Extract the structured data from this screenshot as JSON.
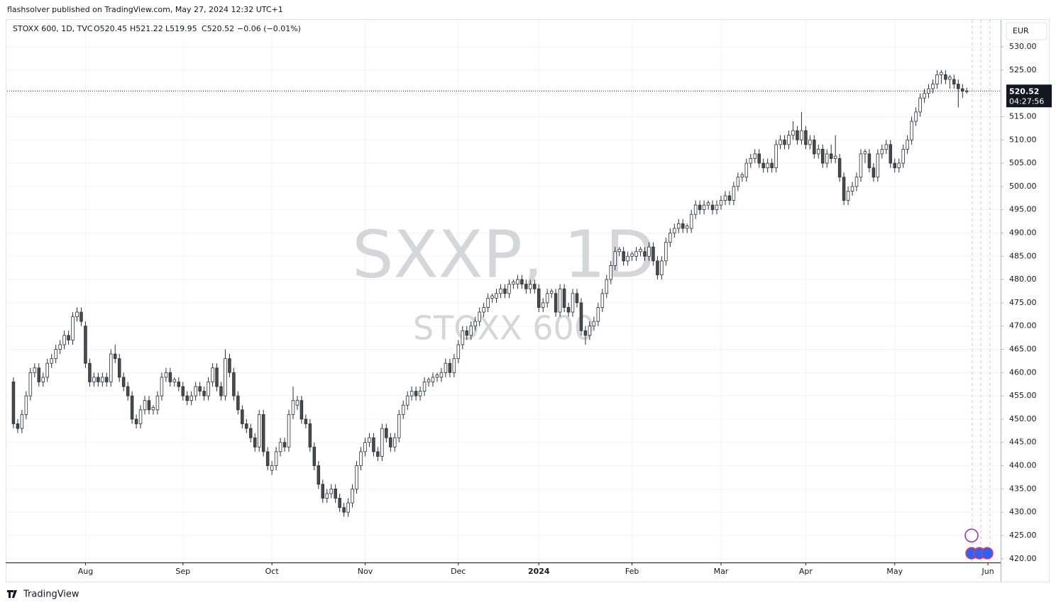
{
  "header": "flashsolver published on TradingView.com, May 27, 2024 12:32 UTC+1",
  "footer": "TradingView",
  "chart_data": {
    "type": "candlestick",
    "legend": {
      "symbol": "STOXX 600, 1D, TVC",
      "open": "O520.45",
      "high": "H521.22",
      "low": "L519.95",
      "close": "C520.52",
      "change": "−0.06 (−0.01%)"
    },
    "watermark": {
      "ticker": "SXXP, 1D",
      "name": "STOXX 600"
    },
    "currency": "EUR",
    "last_price_label": "520.52",
    "countdown": "04:27:56",
    "up_color": "#ffffff",
    "down_color": "#4a4a4a",
    "wick_color": "#2a2e39",
    "grid": true,
    "xlim": [
      -1.5,
      233
    ],
    "xticks": [
      {
        "value": 17,
        "label": "Aug"
      },
      {
        "value": 40,
        "label": "Sep"
      },
      {
        "value": 61,
        "label": "Oct"
      },
      {
        "value": 83,
        "label": "Nov"
      },
      {
        "value": 105,
        "label": "Dec"
      },
      {
        "value": 124,
        "label": "2024"
      },
      {
        "value": 146,
        "label": "Feb"
      },
      {
        "value": 167,
        "label": "Mar"
      },
      {
        "value": 187,
        "label": "Apr"
      },
      {
        "value": 208,
        "label": "May"
      },
      {
        "value": 230,
        "label": "Jun"
      }
    ],
    "ylim": [
      419.2,
      535.8
    ],
    "yticks": [
      {
        "value": 420,
        "label": "420.00"
      },
      {
        "value": 425,
        "label": "425.00"
      },
      {
        "value": 430,
        "label": "430.00"
      },
      {
        "value": 435,
        "label": "435.00"
      },
      {
        "value": 440,
        "label": "440.00"
      },
      {
        "value": 445,
        "label": "445.00"
      },
      {
        "value": 450,
        "label": "450.00"
      },
      {
        "value": 455,
        "label": "455.00"
      },
      {
        "value": 460,
        "label": "460.00"
      },
      {
        "value": 465,
        "label": "465.00"
      },
      {
        "value": 470,
        "label": "470.00"
      },
      {
        "value": 475,
        "label": "475.00"
      },
      {
        "value": 480,
        "label": "480.00"
      },
      {
        "value": 485,
        "label": "485.00"
      },
      {
        "value": 490,
        "label": "490.00"
      },
      {
        "value": 495,
        "label": "495.00"
      },
      {
        "value": 500,
        "label": "500.00"
      },
      {
        "value": 505,
        "label": "505.00"
      },
      {
        "value": 510,
        "label": "510.00"
      },
      {
        "value": 515,
        "label": "515.00"
      },
      {
        "value": 525,
        "label": "525.00"
      },
      {
        "value": 530,
        "label": "530.00"
      }
    ],
    "ohlc": [
      [
        458,
        459,
        448,
        449
      ],
      [
        449,
        450,
        447,
        448
      ],
      [
        448,
        452,
        447,
        451
      ],
      [
        451,
        456,
        450,
        455
      ],
      [
        455,
        461,
        454,
        460
      ],
      [
        460,
        462,
        459,
        461
      ],
      [
        461,
        462,
        457,
        458
      ],
      [
        458,
        460,
        457,
        459
      ],
      [
        459,
        463,
        458,
        462
      ],
      [
        462,
        464,
        461,
        463
      ],
      [
        463,
        466,
        462,
        465
      ],
      [
        465,
        467,
        464,
        466
      ],
      [
        466,
        469,
        465,
        468
      ],
      [
        468,
        469,
        466,
        467
      ],
      [
        467,
        473,
        466,
        472
      ],
      [
        472,
        474,
        471,
        473
      ],
      [
        473,
        474,
        470,
        471
      ],
      [
        470,
        471,
        461,
        462
      ],
      [
        462,
        463,
        457,
        458
      ],
      [
        458,
        460,
        457,
        459
      ],
      [
        459,
        460,
        457,
        458
      ],
      [
        458,
        460,
        457,
        459
      ],
      [
        459,
        460,
        457,
        458
      ],
      [
        458,
        465,
        457,
        464
      ],
      [
        464,
        466,
        462,
        463
      ],
      [
        463,
        464,
        458,
        459
      ],
      [
        459,
        460,
        456,
        457
      ],
      [
        457,
        458,
        454,
        455
      ],
      [
        455,
        456,
        449,
        450
      ],
      [
        450,
        451,
        448,
        449
      ],
      [
        449,
        453,
        448,
        452
      ],
      [
        452,
        455,
        451,
        454
      ],
      [
        454,
        455,
        451,
        452
      ],
      [
        452,
        453,
        451,
        452.5
      ],
      [
        452,
        456,
        451,
        455
      ],
      [
        455,
        460,
        454,
        459
      ],
      [
        459,
        461,
        458,
        460
      ],
      [
        460,
        461,
        457,
        458
      ],
      [
        458,
        459,
        457,
        458.5
      ],
      [
        458,
        459,
        456,
        457
      ],
      [
        457,
        458,
        454,
        455
      ],
      [
        455,
        456,
        453,
        454
      ],
      [
        454,
        456,
        453,
        455
      ],
      [
        455,
        458,
        454,
        457
      ],
      [
        457,
        458,
        455,
        456
      ],
      [
        456,
        457,
        454,
        455
      ],
      [
        455,
        459,
        454,
        458
      ],
      [
        458,
        462,
        457,
        461
      ],
      [
        461,
        462,
        456,
        457
      ],
      [
        457,
        458,
        454,
        455
      ],
      [
        455,
        465,
        454,
        463
      ],
      [
        463,
        464,
        459,
        460
      ],
      [
        460,
        461,
        454,
        455
      ],
      [
        455,
        456,
        451,
        452
      ],
      [
        452,
        453,
        448,
        449
      ],
      [
        449,
        450,
        447,
        448
      ],
      [
        448,
        449,
        445,
        446
      ],
      [
        446,
        447,
        443,
        444
      ],
      [
        444,
        452,
        443,
        451
      ],
      [
        451,
        452,
        442,
        443
      ],
      [
        443,
        444,
        439,
        440
      ],
      [
        439,
        441,
        438,
        440
      ],
      [
        440,
        444,
        439,
        443
      ],
      [
        443,
        446,
        442,
        445
      ],
      [
        445,
        446,
        443,
        444
      ],
      [
        444,
        452,
        443,
        451
      ],
      [
        451,
        457,
        450,
        454
      ],
      [
        453,
        455,
        452,
        454
      ],
      [
        454,
        455,
        449,
        450
      ],
      [
        450,
        451,
        448,
        449
      ],
      [
        449,
        450,
        443,
        444
      ],
      [
        444,
        445,
        439,
        440
      ],
      [
        440,
        441,
        435,
        436
      ],
      [
        436,
        437,
        432,
        433
      ],
      [
        433,
        435,
        432,
        434
      ],
      [
        434,
        436,
        433,
        435
      ],
      [
        435,
        436,
        432,
        433
      ],
      [
        433,
        434,
        430,
        431
      ],
      [
        431,
        432,
        429,
        430
      ],
      [
        430,
        433,
        429,
        432
      ],
      [
        432,
        436,
        431,
        435
      ],
      [
        435,
        441,
        434,
        440
      ],
      [
        440,
        444,
        439,
        443
      ],
      [
        443,
        446,
        442,
        445
      ],
      [
        445,
        447,
        444,
        446
      ],
      [
        446,
        447,
        442,
        443
      ],
      [
        443,
        444,
        441,
        442
      ],
      [
        442,
        449,
        441,
        448
      ],
      [
        448,
        449,
        445,
        446
      ],
      [
        446,
        447,
        443,
        444
      ],
      [
        444,
        447,
        443,
        446
      ],
      [
        446,
        452,
        445,
        451
      ],
      [
        451,
        454,
        450,
        453
      ],
      [
        453,
        456,
        452,
        455
      ],
      [
        455,
        457,
        454,
        456
      ],
      [
        456,
        457,
        454,
        455
      ],
      [
        455,
        457,
        454,
        456
      ],
      [
        456,
        459,
        455,
        458
      ],
      [
        458,
        459,
        457,
        458.5
      ],
      [
        458,
        460,
        457,
        459
      ],
      [
        459,
        460,
        458,
        459.5
      ],
      [
        459,
        461,
        458,
        460
      ],
      [
        460,
        463,
        459,
        462
      ],
      [
        462,
        463,
        459,
        460
      ],
      [
        460,
        464,
        459,
        463
      ],
      [
        463,
        467,
        462,
        466
      ],
      [
        466,
        470,
        465,
        469
      ],
      [
        469,
        470,
        467,
        468
      ],
      [
        468,
        471,
        467,
        470
      ],
      [
        470,
        472,
        469,
        471
      ],
      [
        471,
        474,
        470,
        473
      ],
      [
        473,
        475,
        472,
        474
      ],
      [
        474,
        477,
        473,
        476
      ],
      [
        476,
        477,
        475,
        476.5
      ],
      [
        476,
        478,
        475,
        477
      ],
      [
        477,
        479,
        476,
        478
      ],
      [
        478,
        479,
        476,
        477
      ],
      [
        477,
        480,
        476,
        479
      ],
      [
        479,
        480,
        478,
        479.5
      ],
      [
        479,
        481,
        478,
        480
      ],
      [
        480,
        481,
        478,
        479
      ],
      [
        479,
        480,
        477,
        478
      ],
      [
        478,
        480,
        477,
        479
      ],
      [
        479,
        480,
        477,
        478
      ],
      [
        478,
        479,
        473,
        474
      ],
      [
        474,
        476,
        473,
        475
      ],
      [
        475,
        478,
        474,
        477
      ],
      [
        477,
        478,
        476,
        477.5
      ],
      [
        477,
        478,
        472,
        473
      ],
      [
        473,
        479,
        472,
        478
      ],
      [
        478,
        479,
        473,
        474
      ],
      [
        474,
        475,
        472,
        473
      ],
      [
        473,
        478,
        472,
        477
      ],
      [
        477,
        478,
        474,
        475
      ],
      [
        475,
        476,
        468,
        469
      ],
      [
        469,
        470,
        466,
        468
      ],
      [
        468,
        471,
        467,
        470
      ],
      [
        470,
        472,
        469,
        471
      ],
      [
        471,
        475,
        470,
        474
      ],
      [
        474,
        478,
        473,
        477
      ],
      [
        477,
        481,
        476,
        480
      ],
      [
        480,
        484,
        479,
        483
      ],
      [
        483,
        487,
        482,
        486
      ],
      [
        486,
        487,
        485,
        486.5
      ],
      [
        486,
        487,
        483,
        484
      ],
      [
        484,
        486,
        483,
        485
      ],
      [
        485,
        486,
        484,
        485.5
      ],
      [
        485,
        487,
        484,
        486
      ],
      [
        486,
        487,
        485,
        486.5
      ],
      [
        486,
        487,
        484,
        485
      ],
      [
        485,
        488,
        484,
        487
      ],
      [
        487,
        488,
        483,
        484
      ],
      [
        484,
        485,
        480,
        481
      ],
      [
        481,
        485,
        480,
        484
      ],
      [
        484,
        489,
        483,
        488
      ],
      [
        488,
        491,
        487,
        490
      ],
      [
        490,
        492,
        489,
        491
      ],
      [
        491,
        493,
        490,
        492
      ],
      [
        492,
        493,
        490,
        491
      ],
      [
        491,
        492,
        490,
        491.5
      ],
      [
        491,
        495,
        490,
        494
      ],
      [
        494,
        497,
        493,
        496
      ],
      [
        496,
        497,
        494,
        495
      ],
      [
        495,
        497,
        494,
        496
      ],
      [
        496,
        497,
        495,
        496.5
      ],
      [
        496,
        497,
        494,
        495
      ],
      [
        495,
        497,
        494,
        496
      ],
      [
        496,
        498,
        495,
        497
      ],
      [
        497,
        499,
        496,
        498
      ],
      [
        498,
        499,
        496,
        497
      ],
      [
        497,
        501,
        496,
        500
      ],
      [
        500,
        503,
        499,
        502
      ],
      [
        502,
        503,
        501,
        502.5
      ],
      [
        502,
        506,
        501,
        505
      ],
      [
        505,
        507,
        504,
        506
      ],
      [
        506,
        508,
        505,
        507
      ],
      [
        507,
        508,
        504,
        505
      ],
      [
        505,
        506,
        503,
        504
      ],
      [
        504,
        506,
        503,
        505
      ],
      [
        505,
        506,
        503,
        504
      ],
      [
        504,
        510,
        503,
        509
      ],
      [
        509,
        511,
        508,
        510
      ],
      [
        510,
        511,
        508,
        509
      ],
      [
        509,
        512,
        508,
        511
      ],
      [
        511,
        514,
        510,
        512
      ],
      [
        512,
        513,
        509,
        510
      ],
      [
        510,
        516,
        509,
        512
      ],
      [
        512,
        513,
        508,
        509
      ],
      [
        509,
        511,
        508,
        510
      ],
      [
        510,
        511,
        506,
        507
      ],
      [
        507,
        509,
        506,
        508
      ],
      [
        508,
        509,
        504,
        505
      ],
      [
        505,
        508,
        504,
        507
      ],
      [
        507,
        509,
        505,
        506
      ],
      [
        506,
        511,
        505,
        506.5
      ],
      [
        506,
        507,
        501,
        502
      ],
      [
        502,
        503,
        496,
        497
      ],
      [
        497,
        500,
        496,
        499
      ],
      [
        499,
        501,
        498,
        500
      ],
      [
        500,
        503,
        499,
        502
      ],
      [
        502,
        508,
        501,
        507
      ],
      [
        507,
        508,
        505,
        507.5
      ],
      [
        507,
        508,
        503,
        504
      ],
      [
        504,
        505,
        501,
        502
      ],
      [
        502,
        508,
        501,
        507
      ],
      [
        507,
        509,
        506,
        508
      ],
      [
        508,
        510,
        507,
        509
      ],
      [
        509,
        510,
        504,
        505
      ],
      [
        505,
        506,
        503,
        504
      ],
      [
        504,
        506,
        503,
        505
      ],
      [
        505,
        509,
        504,
        508
      ],
      [
        508,
        511,
        507,
        510
      ],
      [
        510,
        515,
        509,
        514
      ],
      [
        514,
        517,
        513,
        516
      ],
      [
        516,
        520,
        515,
        519
      ],
      [
        519,
        521,
        518,
        520
      ],
      [
        520,
        522,
        519,
        521
      ],
      [
        521,
        523,
        520,
        522
      ],
      [
        522,
        525,
        521,
        524
      ],
      [
        524,
        525,
        522,
        524.5
      ],
      [
        524,
        525,
        522,
        523
      ],
      [
        523,
        524,
        521,
        523.5
      ],
      [
        523,
        524,
        521,
        522
      ],
      [
        522,
        523,
        517,
        521
      ],
      [
        521,
        522,
        519,
        520.5
      ],
      [
        520.45,
        521.22,
        519.95,
        520.52
      ]
    ]
  }
}
